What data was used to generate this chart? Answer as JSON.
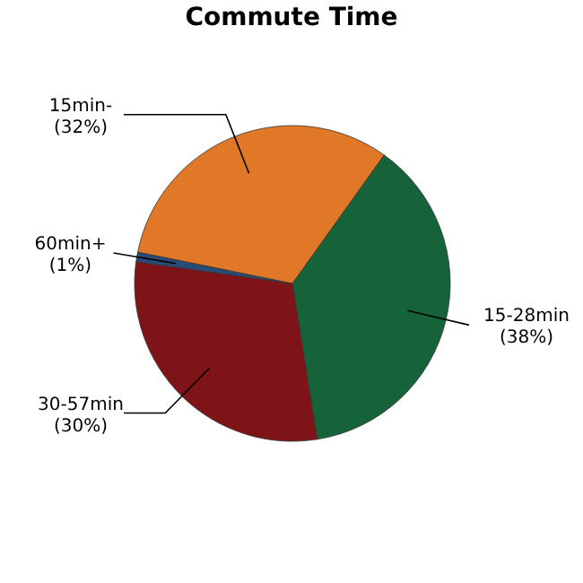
{
  "chart_data": {
    "type": "pie",
    "title": "Commute Time",
    "categories": [
      "15-28min",
      "30-57min",
      "60min+",
      "15min-"
    ],
    "values": [
      38,
      30,
      1,
      32
    ],
    "value_labels": [
      "(38%)",
      "(30%)",
      "(1%)",
      "(32%)"
    ],
    "colors": [
      "#16633a",
      "#7f1418",
      "#2a4a78",
      "#e07828"
    ]
  }
}
